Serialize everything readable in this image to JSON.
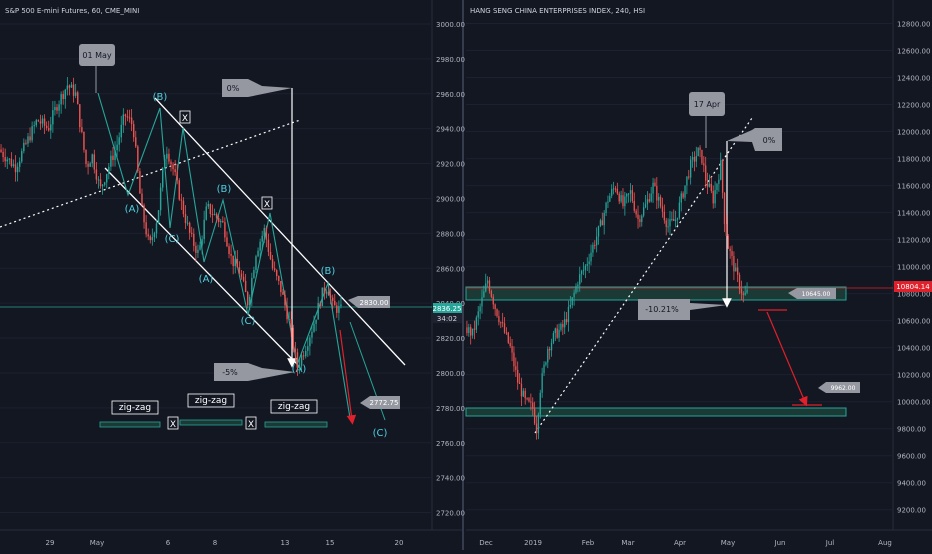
{
  "chart_data": [
    {
      "type": "candlestick",
      "title": "S&P 500 E-mini Futures, 60, CME_MINI",
      "x_ticks": [
        "29",
        "May",
        "6",
        "8",
        "13",
        "15",
        "20"
      ],
      "y_ticks": [
        2720,
        2740,
        2760,
        2780,
        2800,
        2820,
        2840,
        2860,
        2880,
        2900,
        2920,
        2940,
        2960,
        2980,
        3000
      ],
      "ylim": [
        2710,
        3008
      ],
      "price_label": "2836.25",
      "countdown_label": "34:02",
      "path": [
        [
          0,
          2928
        ],
        [
          0.06,
          2918
        ],
        [
          0.11,
          2935
        ],
        [
          0.14,
          2945
        ],
        [
          0.18,
          2940
        ],
        [
          0.21,
          2953
        ],
        [
          0.25,
          2965
        ],
        [
          0.28,
          2960
        ],
        [
          0.32,
          2918
        ],
        [
          0.34,
          2925
        ],
        [
          0.37,
          2905
        ],
        [
          0.4,
          2918
        ],
        [
          0.43,
          2930
        ],
        [
          0.46,
          2948
        ],
        [
          0.49,
          2942
        ],
        [
          0.52,
          2895
        ],
        [
          0.55,
          2872
        ],
        [
          0.58,
          2890
        ],
        [
          0.61,
          2930
        ],
        [
          0.64,
          2915
        ],
        [
          0.67,
          2895
        ],
        [
          0.7,
          2878
        ],
        [
          0.73,
          2868
        ],
        [
          0.76,
          2895
        ],
        [
          0.79,
          2890
        ],
        [
          0.82,
          2885
        ],
        [
          0.85,
          2865
        ],
        [
          0.88,
          2858
        ],
        [
          0.91,
          2840
        ],
        [
          0.94,
          2870
        ],
        [
          0.97,
          2882
        ],
        [
          1.0,
          2860
        ],
        [
          1.03,
          2848
        ],
        [
          1.06,
          2830
        ],
        [
          1.09,
          2803
        ],
        [
          1.12,
          2815
        ],
        [
          1.15,
          2828
        ],
        [
          1.18,
          2845
        ],
        [
          1.2,
          2850
        ],
        [
          1.22,
          2838
        ],
        [
          1.25,
          2836
        ]
      ],
      "annotations": {
        "date_callout": "01 May",
        "pct_top": "0%",
        "pct_bottom": "-5%",
        "wave_labels": [
          "(A)",
          "(B)",
          "(C)",
          "(A)",
          "(B)",
          "(C)",
          "(A)",
          "(B)",
          "(C)"
        ],
        "x_marks": [
          "X",
          "X",
          "X",
          "X"
        ],
        "zigzag_labels": [
          "zig-zag",
          "zig-zag",
          "zig-zag"
        ],
        "target_labels": [
          "2830.00",
          "2772.75"
        ]
      }
    },
    {
      "type": "candlestick",
      "title": "HANG SENG CHINA ENTERPRISES INDEX, 240, HSI",
      "x_ticks": [
        "Dec",
        "2019",
        "Feb",
        "Mar",
        "Apr",
        "May",
        "Jun",
        "Jul",
        "Aug"
      ],
      "y_ticks": [
        9200,
        9400,
        9600,
        9800,
        10000,
        10200,
        10400,
        10600,
        10800,
        11000,
        11200,
        11400,
        11600,
        11800,
        12000,
        12200,
        12400,
        12600,
        12800
      ],
      "ylim": [
        9050,
        12900
      ],
      "price_label": "10804.14",
      "path": [
        [
          0,
          10550
        ],
        [
          0.02,
          10500
        ],
        [
          0.04,
          10700
        ],
        [
          0.06,
          10900
        ],
        [
          0.08,
          10700
        ],
        [
          0.1,
          10550
        ],
        [
          0.12,
          10400
        ],
        [
          0.14,
          10150
        ],
        [
          0.16,
          10000
        ],
        [
          0.18,
          9950
        ],
        [
          0.19,
          9800
        ],
        [
          0.2,
          10100
        ],
        [
          0.22,
          10400
        ],
        [
          0.24,
          10500
        ],
        [
          0.26,
          10550
        ],
        [
          0.28,
          10700
        ],
        [
          0.3,
          10900
        ],
        [
          0.32,
          11000
        ],
        [
          0.34,
          11150
        ],
        [
          0.36,
          11300
        ],
        [
          0.38,
          11500
        ],
        [
          0.4,
          11600
        ],
        [
          0.42,
          11450
        ],
        [
          0.44,
          11550
        ],
        [
          0.46,
          11350
        ],
        [
          0.48,
          11450
        ],
        [
          0.5,
          11600
        ],
        [
          0.52,
          11450
        ],
        [
          0.54,
          11300
        ],
        [
          0.56,
          11350
        ],
        [
          0.58,
          11550
        ],
        [
          0.6,
          11750
        ],
        [
          0.62,
          11850
        ],
        [
          0.63,
          11800
        ],
        [
          0.64,
          11650
        ],
        [
          0.66,
          11500
        ],
        [
          0.68,
          11750
        ],
        [
          0.69,
          11350
        ],
        [
          0.7,
          11150
        ],
        [
          0.72,
          10950
        ],
        [
          0.74,
          10780
        ],
        [
          0.75,
          10804
        ]
      ],
      "annotations": {
        "date_callout": "17 Apr",
        "pct_top": "0%",
        "pct_bottom": "-10.21%",
        "target_labels": [
          "10645.00",
          "9962.00"
        ]
      }
    }
  ]
}
